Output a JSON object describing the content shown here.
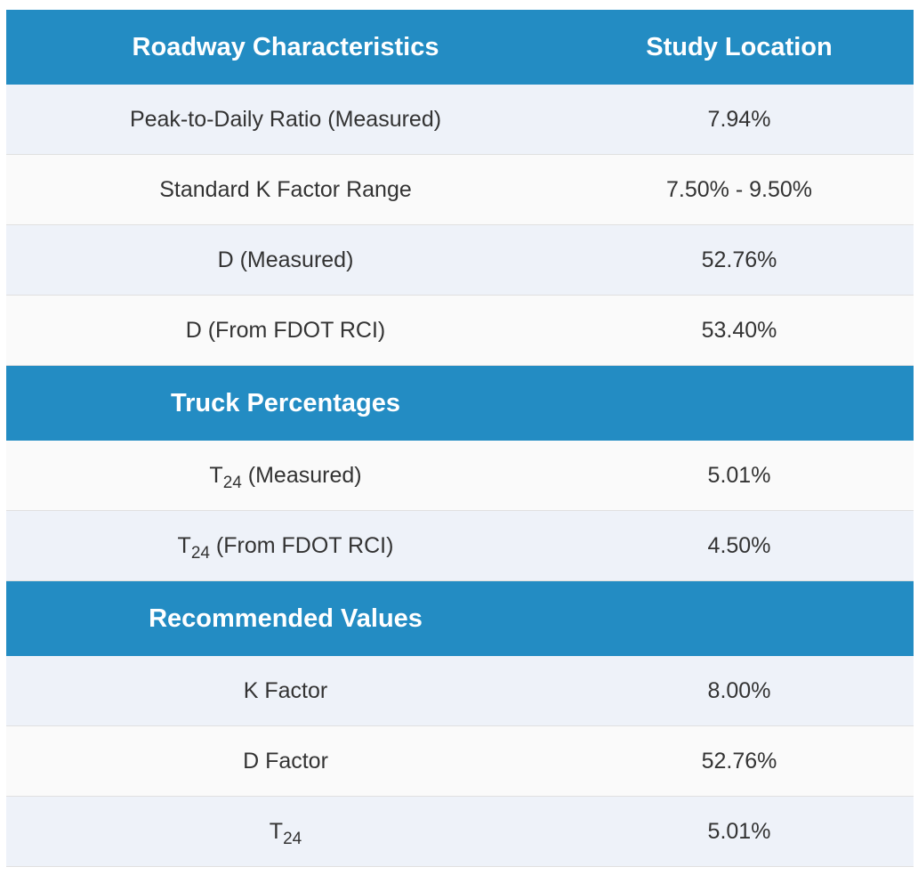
{
  "header": {
    "col1": "Roadway Characteristics",
    "col2": "Study Location"
  },
  "roadway_rows": [
    {
      "label": "Peak-to-Daily Ratio (Measured)",
      "value": "7.94%"
    },
    {
      "label": "Standard K Factor Range",
      "value": "7.50% - 9.50%"
    },
    {
      "label": "D (Measured)",
      "value": "52.76%"
    },
    {
      "label": "D (From FDOT RCI)",
      "value": "53.40%"
    }
  ],
  "truck_section": {
    "title": "Truck Percentages",
    "rows": [
      {
        "label_main": "T",
        "label_sub": "24",
        "label_rest": " (Measured)",
        "value": "5.01%"
      },
      {
        "label_main": "T",
        "label_sub": "24",
        "label_rest": " (From FDOT RCI)",
        "value": "4.50%"
      }
    ]
  },
  "recommended_section": {
    "title": "Recommended Values",
    "rows": [
      {
        "label": "K Factor",
        "value": "8.00%"
      },
      {
        "label": "D Factor",
        "value": "52.76%"
      }
    ],
    "t24_row": {
      "label_main": "T",
      "label_sub": "24",
      "value": "5.01%"
    }
  },
  "colors": {
    "header_bg": "#238cc3",
    "header_text": "#ffffff",
    "row_alt_bg": "#eef2f9",
    "row_plain_bg": "#fafafa",
    "body_text": "#333333"
  }
}
